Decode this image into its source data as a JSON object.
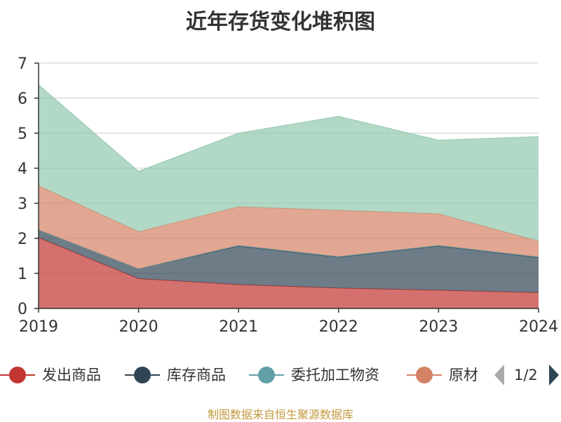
{
  "title": "近年存货变化堆积图",
  "source": "制图数据来自恒生聚源数据库",
  "legend_page": "1/2",
  "chart_data": {
    "type": "area",
    "stacked": true,
    "title": "近年存货变化堆积图",
    "x": [
      "2019",
      "2020",
      "2021",
      "2022",
      "2023",
      "2024"
    ],
    "ylim": [
      0,
      7
    ],
    "yticks": [
      "0",
      "1",
      "2",
      "3",
      "4",
      "5",
      "6",
      "7"
    ],
    "grid": true,
    "legend_position": "bottom",
    "series": [
      {
        "name": "发出商品",
        "color": "#c23531",
        "values": [
          2.02,
          0.85,
          0.68,
          0.58,
          0.52,
          0.45
        ]
      },
      {
        "name": "库存商品",
        "color": "#2f4554",
        "values": [
          0.22,
          0.28,
          1.1,
          0.88,
          1.26,
          1.0
        ]
      },
      {
        "name": "委托加工物资",
        "color": "#61a0a8",
        "values": [
          0.0,
          0.0,
          0.02,
          0.02,
          0.02,
          0.02
        ]
      },
      {
        "name": "原材料",
        "color": "#d48265",
        "values": [
          1.26,
          1.06,
          1.1,
          1.32,
          0.9,
          0.45
        ]
      },
      {
        "name": "",
        "color": "#91c7ae",
        "values": [
          2.88,
          1.72,
          2.1,
          2.68,
          2.1,
          2.98
        ]
      }
    ],
    "legend_visible": [
      "发出商品",
      "库存商品",
      "委托加工物资",
      "原材"
    ]
  }
}
